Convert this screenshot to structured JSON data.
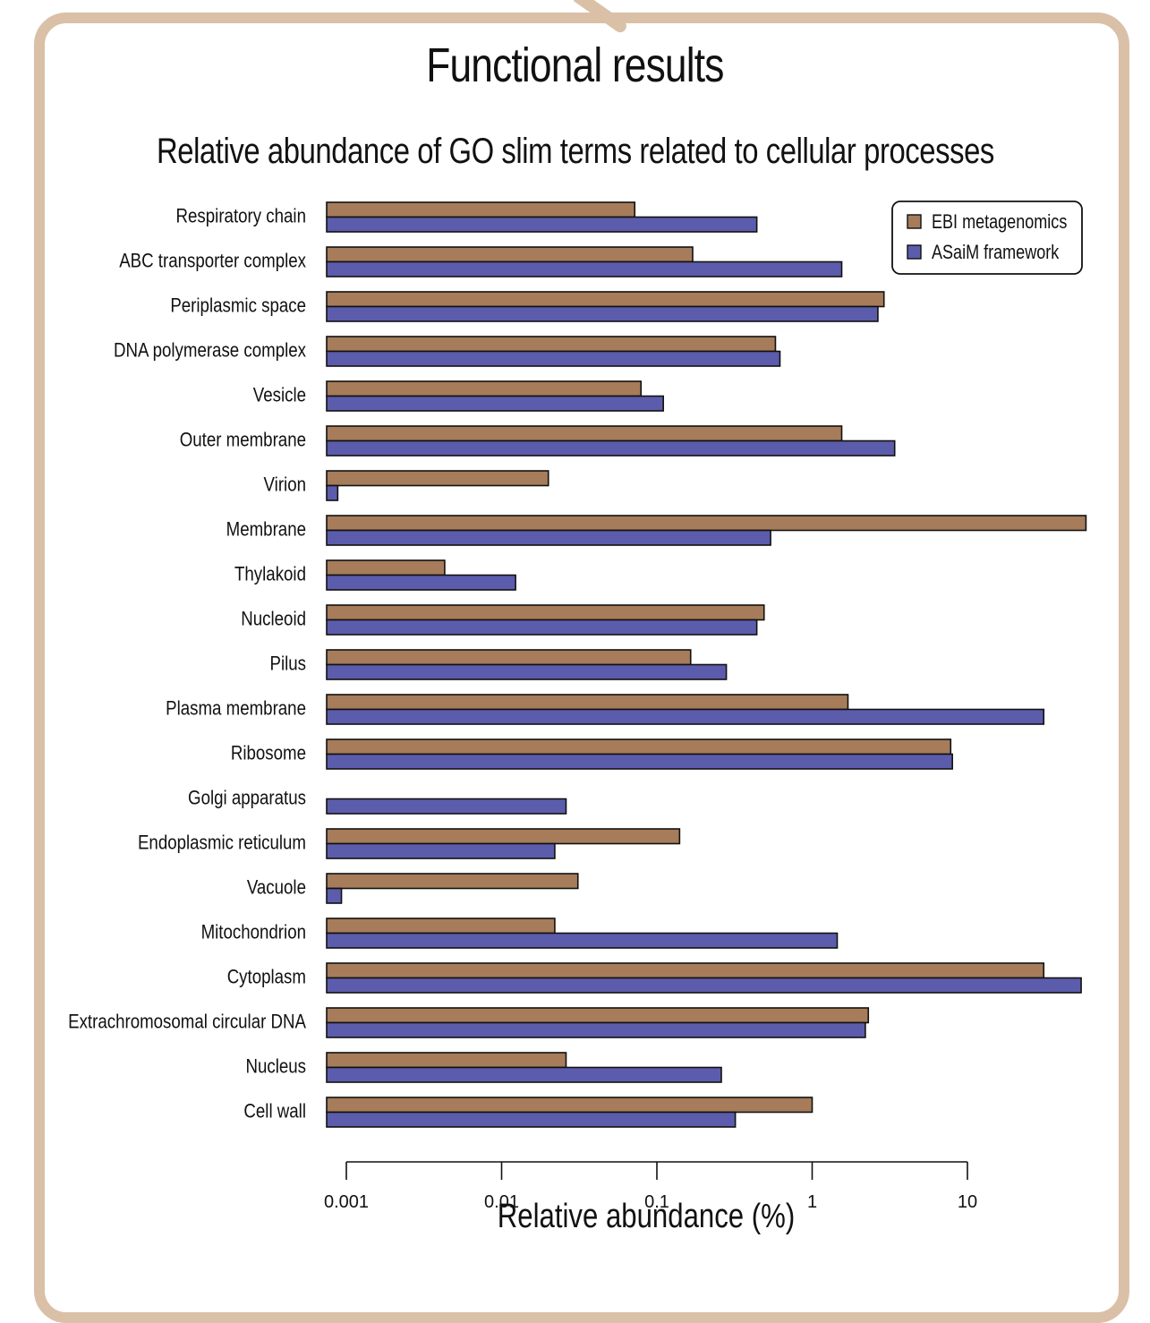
{
  "page": {
    "title": "Functional results"
  },
  "colors": {
    "frame": "#d9c0a7",
    "ebi": "#a67c5a",
    "asaim": "#5c5cac",
    "stroke": "#111111"
  },
  "chart_data": {
    "type": "bar",
    "orientation": "horizontal",
    "title": "Relative abundance of GO slim terms related to cellular processes",
    "xlabel": "Relative abundance (%)",
    "ylabel": "",
    "xscale": "log",
    "xlim": [
      0.0008,
      60
    ],
    "xticks": [
      0.001,
      0.01,
      0.1,
      1,
      10
    ],
    "xtick_labels": [
      "0.001",
      "0.01",
      "0.1",
      "1",
      "10"
    ],
    "grid": false,
    "legend_position": "top-right",
    "categories": [
      "Respiratory chain",
      "ABC transporter complex",
      "Periplasmic space",
      "DNA polymerase complex",
      "Vesicle",
      "Outer membrane",
      "Virion",
      "Membrane",
      "Thylakoid",
      "Nucleoid",
      "Pilus",
      "Plasma membrane",
      "Ribosome",
      "Golgi apparatus",
      "Endoplasmic reticulum",
      "Vacuole",
      "Mitochondrion",
      "Cytoplasm",
      "Extrachromosomal circular DNA",
      "Nucleus",
      "Cell wall"
    ],
    "series": [
      {
        "name": "EBI metagenomics",
        "color": "#a67c5a",
        "values": [
          0.072,
          0.17,
          2.9,
          0.58,
          0.079,
          1.55,
          0.02,
          58,
          0.0043,
          0.49,
          0.165,
          1.7,
          7.8,
          null,
          0.14,
          0.031,
          0.022,
          31,
          2.3,
          0.026,
          1.0
        ]
      },
      {
        "name": "ASaiM framework",
        "color": "#5c5cac",
        "values": [
          0.44,
          1.55,
          2.65,
          0.62,
          0.11,
          3.4,
          0.00088,
          0.54,
          0.0123,
          0.44,
          0.28,
          31,
          8.0,
          0.026,
          0.022,
          0.00093,
          1.45,
          54,
          2.2,
          0.26,
          0.32
        ]
      }
    ]
  }
}
